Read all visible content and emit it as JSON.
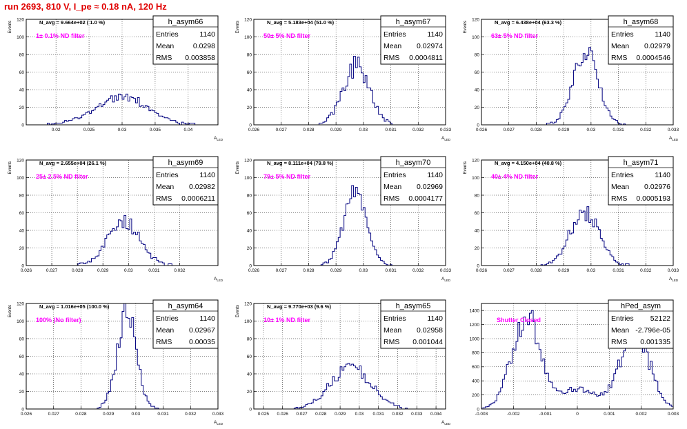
{
  "header": "run 2693,   810 V, I_pe ≈ 0.18 nA, 120 Hz",
  "stat_labels": {
    "entries": "Entries",
    "mean": "Mean",
    "rms": "RMS"
  },
  "chart_data": [
    {
      "type": "bar",
      "name": "h_asym66",
      "entries": "1140",
      "mean": "0.0298",
      "rms": "0.003858",
      "navg": "N_avg = 9.664e+02 ( 1.0 %)",
      "filter": "1± 0.1% ND filter",
      "filter_color": "#ff00ff",
      "xlabel": "A_LED",
      "ylabel": "Events",
      "xlim": [
        0.0155,
        0.0445
      ],
      "ylim": [
        0,
        120
      ],
      "xticks": [
        "0.02",
        "0.025",
        "0.03",
        "0.035",
        "0.04"
      ],
      "yticks": [
        "0",
        "20",
        "40",
        "60",
        "80",
        "100",
        "120"
      ],
      "dist": {
        "mean": 0.0298,
        "sigma": 0.0039,
        "peak": 33
      }
    },
    {
      "type": "bar",
      "name": "h_asym67",
      "entries": "1140",
      "mean": "0.02974",
      "rms": "0.0004811",
      "navg": "N_avg = 5.183e+04 (51.0 %)",
      "filter": "50± 5% ND filter",
      "filter_color": "#ff00ff",
      "xlabel": "A_LED",
      "ylabel": "Events",
      "xlim": [
        0.026,
        0.033
      ],
      "ylim": [
        0,
        120
      ],
      "xticks": [
        "0.026",
        "0.027",
        "0.028",
        "0.029",
        "0.03",
        "0.031",
        "0.032",
        "0.033"
      ],
      "yticks": [
        "0",
        "20",
        "40",
        "60",
        "80",
        "100",
        "120"
      ],
      "dist": {
        "mean": 0.02974,
        "sigma": 0.00048,
        "peak": 68
      }
    },
    {
      "type": "bar",
      "name": "h_asym68",
      "entries": "1140",
      "mean": "0.02979",
      "rms": "0.0004546",
      "navg": "N_avg = 6.438e+04 (63.3 %)",
      "filter": "63± 5% ND filter",
      "filter_color": "#ff00ff",
      "xlabel": "A_LED",
      "ylabel": "Events",
      "xlim": [
        0.026,
        0.033
      ],
      "ylim": [
        0,
        120
      ],
      "xticks": [
        "0.026",
        "0.027",
        "0.028",
        "0.029",
        "0.03",
        "0.031",
        "0.032",
        "0.033"
      ],
      "yticks": [
        "0",
        "20",
        "40",
        "60",
        "80",
        "100",
        "120"
      ],
      "dist": {
        "mean": 0.02979,
        "sigma": 0.00045,
        "peak": 84
      }
    },
    {
      "type": "bar",
      "name": "h_asym69",
      "entries": "1140",
      "mean": "0.02982",
      "rms": "0.0006211",
      "navg": "N_avg = 2.655e+04 (26.1 %)",
      "filter": "25± 2.5% ND filter",
      "filter_color": "#ff00ff",
      "xlabel": "A_LED",
      "ylabel": "Events",
      "xlim": [
        0.026,
        0.0335
      ],
      "ylim": [
        0,
        120
      ],
      "xticks": [
        "0.026",
        "0.027",
        "0.028",
        "0.029",
        "0.03",
        "0.031",
        "0.032"
      ],
      "yticks": [
        "0",
        "20",
        "40",
        "60",
        "80",
        "100",
        "120"
      ],
      "dist": {
        "mean": 0.02982,
        "sigma": 0.00062,
        "peak": 50
      }
    },
    {
      "type": "bar",
      "name": "h_asym70",
      "entries": "1140",
      "mean": "0.02969",
      "rms": "0.0004177",
      "navg": "N_avg = 8.111e+04 (79.8 %)",
      "filter": "79± 5% ND filter",
      "filter_color": "#ff00ff",
      "xlabel": "A_LED",
      "ylabel": "Events",
      "xlim": [
        0.026,
        0.033
      ],
      "ylim": [
        0,
        120
      ],
      "xticks": [
        "0.026",
        "0.027",
        "0.028",
        "0.029",
        "0.03",
        "0.031",
        "0.032",
        "0.033"
      ],
      "yticks": [
        "0",
        "20",
        "40",
        "60",
        "80",
        "100",
        "120"
      ],
      "dist": {
        "mean": 0.02969,
        "sigma": 0.00042,
        "peak": 80
      }
    },
    {
      "type": "bar",
      "name": "h_asym71",
      "entries": "1140",
      "mean": "0.02976",
      "rms": "0.0005193",
      "navg": "N_avg = 4.150e+04 (40.8 %)",
      "filter": "40± 4% ND filter",
      "filter_color": "#ff00ff",
      "xlabel": "A_LED",
      "ylabel": "Events",
      "xlim": [
        0.026,
        0.033
      ],
      "ylim": [
        0,
        120
      ],
      "xticks": [
        "0.026",
        "0.027",
        "0.028",
        "0.029",
        "0.03",
        "0.031",
        "0.032",
        "0.033"
      ],
      "yticks": [
        "0",
        "20",
        "40",
        "60",
        "80",
        "100",
        "120"
      ],
      "dist": {
        "mean": 0.02976,
        "sigma": 0.00052,
        "peak": 62
      }
    },
    {
      "type": "bar",
      "name": "h_asym64",
      "entries": "1140",
      "mean": "0.02967",
      "rms": "0.00035",
      "navg": "N_avg = 1.016e+05 (100.0 %)",
      "filter": "100% (No filter)",
      "filter_color": "#ff00ff",
      "xlabel": "A_LED",
      "ylabel": "Events",
      "xlim": [
        0.026,
        0.033
      ],
      "ylim": [
        0,
        120
      ],
      "xticks": [
        "0.026",
        "0.027",
        "0.028",
        "0.029",
        "0.03",
        "0.031",
        "0.032",
        "0.033"
      ],
      "yticks": [
        "0",
        "20",
        "40",
        "60",
        "80",
        "100",
        "120"
      ],
      "dist": {
        "mean": 0.02967,
        "sigma": 0.00035,
        "peak": 110
      }
    },
    {
      "type": "bar",
      "name": "h_asym65",
      "entries": "1140",
      "mean": "0.02958",
      "rms": "0.001044",
      "navg": "N_avg = 9.770e+03 (9.6 %)",
      "filter": "10± 1% ND filter",
      "filter_color": "#ff00ff",
      "xlabel": "A_LED",
      "ylabel": "Events",
      "xlim": [
        0.0245,
        0.0345
      ],
      "ylim": [
        0,
        120
      ],
      "xticks": [
        "0.025",
        "0.026",
        "0.027",
        "0.028",
        "0.029",
        "0.03",
        "0.031",
        "0.032",
        "0.033",
        "0.034"
      ],
      "yticks": [
        "0",
        "20",
        "40",
        "60",
        "80",
        "100",
        "120"
      ],
      "dist": {
        "mean": 0.02958,
        "sigma": 0.00104,
        "peak": 47
      }
    },
    {
      "type": "bar",
      "name": "hPed_asym",
      "entries": "52122",
      "mean": "-2.796e-05",
      "rms": "0.001335",
      "navg": "",
      "filter": "Shutter Closed",
      "filter_color": "#ff00ff",
      "xlabel": "",
      "ylabel": "",
      "xlim": [
        -0.003,
        0.003
      ],
      "ylim": [
        0,
        1500
      ],
      "xticks": [
        "-0.003",
        "-0.002",
        "-0.001",
        "0",
        "0.001",
        "0.002",
        "0.003"
      ],
      "yticks": [
        "0",
        "200",
        "400",
        "600",
        "800",
        "1000",
        "1200",
        "1400"
      ],
      "dist": {
        "components": [
          {
            "mean": -0.0016,
            "sigma": 0.00045,
            "peak": 1320
          },
          {
            "mean": 0.0018,
            "sigma": 0.00045,
            "peak": 1120
          },
          {
            "mean": 0.0,
            "sigma": 0.0006,
            "peak": 280
          }
        ]
      }
    }
  ]
}
